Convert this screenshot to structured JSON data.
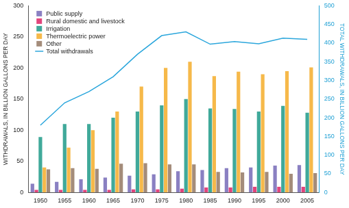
{
  "chart_data": {
    "type": "bar",
    "categories": [
      "1950",
      "1955",
      "1960",
      "1965",
      "1970",
      "1975",
      "1980",
      "1985",
      "1990",
      "1995",
      "2000",
      "2005"
    ],
    "y_label": "WITHDRAWALS, IN BILLION GALLONS PER DAY",
    "y2_label": "TOTAL WITHDRAWALS, IN BILLION GALLONS PER DAY",
    "ylim": [
      0,
      300
    ],
    "yticks": [
      0,
      50,
      100,
      150,
      200,
      250,
      300
    ],
    "y2lim": [
      0,
      500
    ],
    "y2ticks": [
      0,
      50,
      100,
      150,
      200,
      250,
      300,
      350,
      400,
      450,
      500
    ],
    "grid": false,
    "legend": "upper-left",
    "series": [
      {
        "name": "Public supply",
        "type": "bar",
        "color": "#8a80c2",
        "values": [
          14,
          17,
          21,
          24,
          27,
          29,
          34,
          36,
          39,
          40,
          43,
          44
        ]
      },
      {
        "name": "Rural domestic and livestock",
        "type": "bar",
        "color": "#e2457c",
        "values": [
          4,
          4,
          4,
          4,
          5,
          5,
          6,
          8,
          8,
          9,
          9,
          9
        ]
      },
      {
        "name": "Irrigation",
        "type": "bar",
        "color": "#40a99a",
        "values": [
          89,
          110,
          110,
          120,
          130,
          140,
          150,
          135,
          134,
          130,
          139,
          128
        ]
      },
      {
        "name": "Thermoelectric power",
        "type": "bar",
        "color": "#f6b94a",
        "values": [
          40,
          72,
          100,
          130,
          170,
          200,
          210,
          187,
          194,
          190,
          195,
          201
        ]
      },
      {
        "name": "Other",
        "type": "bar",
        "color": "#a48c7a",
        "values": [
          37,
          39,
          38,
          46,
          47,
          45,
          45,
          33,
          32,
          33,
          30,
          31
        ]
      },
      {
        "name": "Total withdrawals",
        "type": "line",
        "axis": "y2",
        "color": "#2aa6dc",
        "marker": "none",
        "line_style": "solid",
        "values": [
          180,
          240,
          270,
          310,
          370,
          420,
          430,
          397,
          404,
          398,
          413,
          410
        ]
      }
    ]
  }
}
